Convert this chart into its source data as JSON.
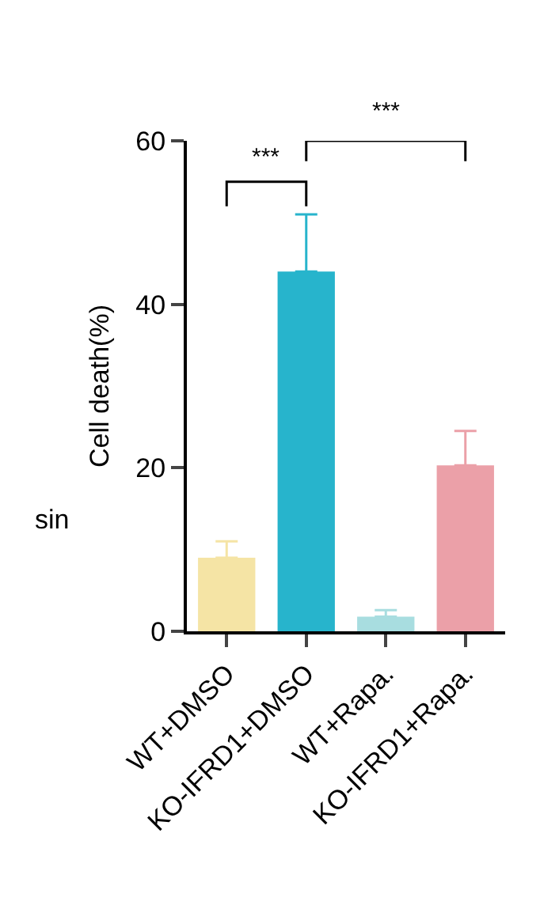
{
  "chart_data": {
    "type": "bar",
    "ylabel": "Cell death(%)",
    "categories": [
      "WT+DMSO",
      "KO-IFRD1+DMSO",
      "WT+Rapa.",
      "KO-IFRD1+Rapa."
    ],
    "values": [
      9,
      44,
      1.8,
      20.3
    ],
    "colors": [
      "#f5e4a5",
      "#27b4cc",
      "#a8dde0",
      "#eba0a8"
    ],
    "errors": [
      [
        9,
        11
      ],
      [
        44,
        51
      ],
      [
        1.8,
        2.6
      ],
      [
        20.3,
        24.5
      ]
    ],
    "ylim": [
      0,
      60
    ],
    "yticks": [
      0,
      20,
      40,
      60
    ],
    "grid": false,
    "annotations": [
      "***",
      "***",
      "sin"
    ]
  }
}
